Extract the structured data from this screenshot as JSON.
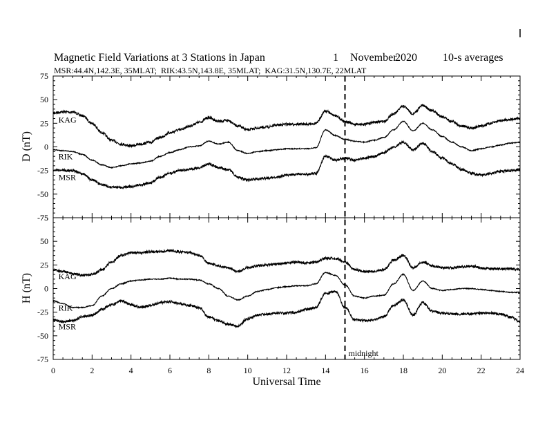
{
  "chart_data": {
    "type": "line",
    "title": {
      "text": "Magnetic Field Variations at 3 Stations in Japan",
      "day": "1",
      "month": "November",
      "year": "2020",
      "averaging": "10-s averages"
    },
    "subtitle": "MSR:44.4N,142.3E, 35MLAT;  RIK:43.5N,143.8E, 35MLAT;  KAG:31.5N,130.7E, 22MLAT",
    "xlabel": "Universal Time",
    "xlim": [
      0,
      24
    ],
    "xticks": [
      "0",
      "2",
      "4",
      "6",
      "8",
      "10",
      "12",
      "14",
      "16",
      "18",
      "20",
      "22",
      "24"
    ],
    "annotation": {
      "label": "midnight",
      "x": 15
    },
    "panels": [
      {
        "ylabel": "D (nT)",
        "ylim": [
          -75,
          75
        ],
        "yticks": [
          "75",
          "50",
          "25",
          "0",
          "-25",
          "-50",
          "-75"
        ],
        "x": [
          0,
          0.5,
          1,
          1.5,
          2,
          2.5,
          3,
          3.5,
          4,
          4.5,
          5,
          5.5,
          6,
          6.5,
          7,
          7.5,
          8,
          8.5,
          9,
          9.5,
          10,
          10.5,
          11,
          11.5,
          12,
          12.5,
          13,
          13.5,
          14,
          14.5,
          15,
          15.5,
          16,
          16.5,
          17,
          17.5,
          18,
          18.5,
          19,
          19.5,
          20,
          20.5,
          21,
          21.5,
          22,
          22.5,
          23,
          23.5,
          24
        ],
        "series": [
          {
            "name": "KAG",
            "label_x": 0.2,
            "values": [
              36,
              37,
              37,
              33,
              25,
              15,
              7,
              3,
              1,
              3,
              5,
              10,
              15,
              18,
              22,
              26,
              31,
              27,
              28,
              22,
              18,
              20,
              21,
              23,
              24,
              24,
              24,
              25,
              38,
              33,
              27,
              24,
              24,
              26,
              27,
              35,
              43,
              35,
              44,
              38,
              32,
              27,
              22,
              20,
              22,
              25,
              28,
              29,
              30
            ]
          },
          {
            "name": "RIK",
            "label_x": 0.2,
            "values": [
              -3,
              -4,
              -5,
              -8,
              -14,
              -19,
              -22,
              -20,
              -18,
              -17,
              -15,
              -10,
              -6,
              -3,
              0,
              1,
              6,
              3,
              5,
              -4,
              -7,
              -5,
              -4,
              -3,
              -2,
              -2,
              -2,
              -1,
              18,
              12,
              8,
              6,
              5,
              7,
              10,
              18,
              27,
              17,
              25,
              18,
              11,
              5,
              0,
              -4,
              -2,
              0,
              2,
              4,
              5
            ]
          },
          {
            "name": "MSR",
            "label_x": 0.2,
            "values": [
              -25,
              -25,
              -25,
              -28,
              -35,
              -40,
              -43,
              -43,
              -42,
              -40,
              -38,
              -32,
              -28,
              -25,
              -24,
              -22,
              -18,
              -22,
              -24,
              -32,
              -35,
              -34,
              -33,
              -32,
              -30,
              -29,
              -29,
              -28,
              -10,
              -14,
              -12,
              -14,
              -12,
              -10,
              -6,
              0,
              5,
              -3,
              4,
              -5,
              -12,
              -18,
              -24,
              -28,
              -30,
              -28,
              -26,
              -25,
              -24
            ]
          }
        ]
      },
      {
        "ylabel": "H (nT)",
        "ylim": [
          -75,
          75
        ],
        "yticks": [
          "75",
          "50",
          "25",
          "0",
          "-25",
          "-50",
          "-75"
        ],
        "x": [
          0,
          0.5,
          1,
          1.5,
          2,
          2.5,
          3,
          3.5,
          4,
          4.5,
          5,
          5.5,
          6,
          6.5,
          7,
          7.5,
          8,
          8.5,
          9,
          9.5,
          10,
          10.5,
          11,
          11.5,
          12,
          12.5,
          13,
          13.5,
          14,
          14.5,
          15,
          15.5,
          16,
          16.5,
          17,
          17.5,
          18,
          18.5,
          19,
          19.5,
          20,
          20.5,
          21,
          21.5,
          22,
          22.5,
          23,
          23.5,
          24
        ],
        "series": [
          {
            "name": "KAG",
            "label_x": 0.2,
            "values": [
              20,
              18,
              16,
              14,
              15,
              20,
              28,
              35,
              38,
              38,
              39,
              39,
              40,
              39,
              38,
              35,
              27,
              24,
              22,
              18,
              22,
              24,
              25,
              26,
              27,
              28,
              27,
              28,
              32,
              32,
              28,
              20,
              18,
              18,
              20,
              30,
              35,
              22,
              28,
              24,
              22,
              22,
              23,
              24,
              22,
              21,
              21,
              21,
              20
            ]
          },
          {
            "name": "RIK",
            "label_x": 0.2,
            "values": [
              -13,
              -16,
              -20,
              -20,
              -18,
              -8,
              0,
              5,
              8,
              9,
              10,
              10,
              11,
              10,
              10,
              9,
              5,
              0,
              -8,
              -12,
              -8,
              -3,
              -1,
              1,
              2,
              3,
              3,
              5,
              17,
              14,
              4,
              -8,
              -10,
              -8,
              -7,
              5,
              15,
              -2,
              8,
              0,
              -2,
              -1,
              0,
              0,
              -1,
              -2,
              -3,
              -4,
              -4
            ]
          },
          {
            "name": "MSR",
            "label_x": 0.2,
            "values": [
              -33,
              -35,
              -34,
              -30,
              -28,
              -22,
              -17,
              -13,
              -17,
              -20,
              -18,
              -15,
              -14,
              -16,
              -18,
              -20,
              -30,
              -34,
              -38,
              -40,
              -32,
              -28,
              -27,
              -26,
              -26,
              -25,
              -22,
              -20,
              -5,
              -3,
              -20,
              -33,
              -34,
              -33,
              -30,
              -18,
              -12,
              -28,
              -15,
              -24,
              -26,
              -27,
              -27,
              -27,
              -26,
              -26,
              -27,
              -30,
              -35
            ]
          }
        ]
      }
    ]
  }
}
